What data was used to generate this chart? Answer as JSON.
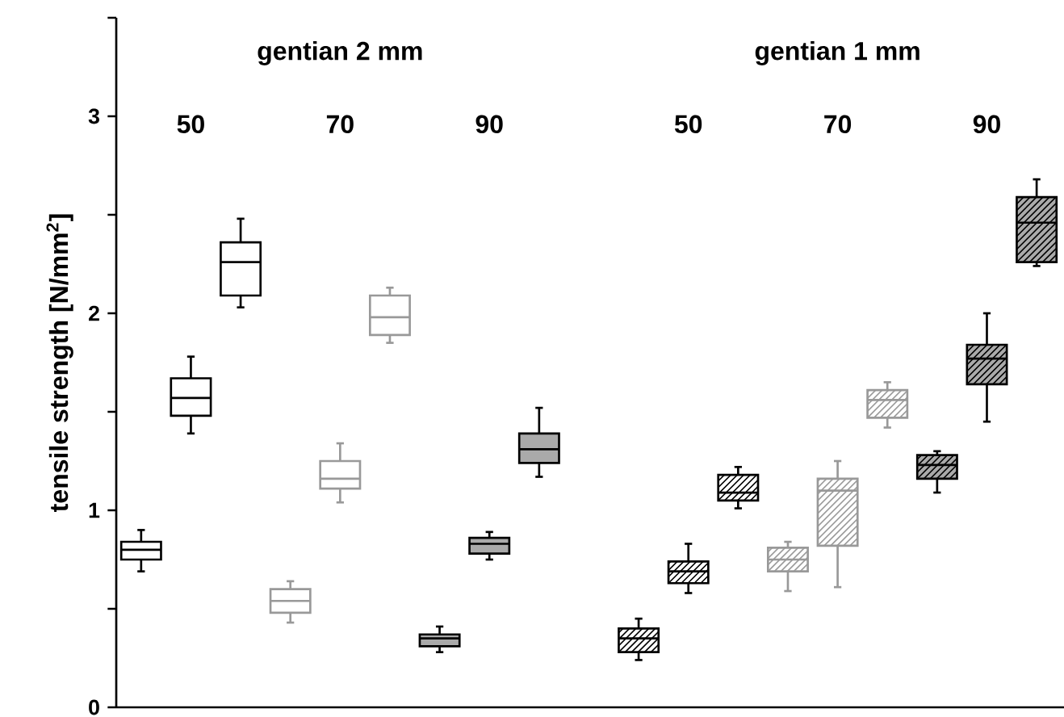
{
  "chart_data": {
    "type": "box",
    "ylabel": "tensile strength [N/mm$^{2}$]",
    "annotations": [
      "gentian 2 mm",
      "gentian 1 mm",
      "50",
      "70",
      "90",
      "50",
      "70",
      "90"
    ],
    "categories": [
      null,
      null,
      null,
      null,
      null,
      null,
      null,
      null,
      null,
      null,
      null,
      null,
      null,
      null,
      null,
      null,
      null,
      null,
      null
    ],
    "colors": [
      "#000000",
      "#000000",
      "#000000",
      "#999999",
      "#999999",
      "#999999",
      "#000000",
      "#000000",
      "#000000",
      null,
      "#000000",
      "#000000",
      "#000000",
      "#999999",
      "#999999",
      "#999999",
      "#000000",
      "#000000",
      "#000000"
    ],
    "boxes": [
      {
        "low": 0.69,
        "q1": 0.75,
        "median": 0.8,
        "q3": 0.84,
        "high": 0.9
      },
      {
        "low": 1.39,
        "q1": 1.48,
        "median": 1.57,
        "q3": 1.67,
        "high": 1.78
      },
      {
        "low": 2.03,
        "q1": 2.09,
        "median": 2.26,
        "q3": 2.36,
        "high": 2.48
      },
      {
        "low": 0.43,
        "q1": 0.48,
        "median": 0.54,
        "q3": 0.6,
        "high": 0.64
      },
      {
        "low": 1.04,
        "q1": 1.11,
        "median": 1.16,
        "q3": 1.25,
        "high": 1.34
      },
      {
        "low": 1.85,
        "q1": 1.89,
        "median": 1.98,
        "q3": 2.09,
        "high": 2.13
      },
      {
        "low": 0.28,
        "q1": 0.31,
        "median": 0.35,
        "q3": 0.37,
        "high": 0.41
      },
      {
        "low": 0.75,
        "q1": 0.78,
        "median": 0.83,
        "q3": 0.86,
        "high": 0.89
      },
      {
        "low": 1.17,
        "q1": 1.24,
        "median": 1.31,
        "q3": 1.39,
        "high": 1.52
      },
      null,
      {
        "low": 0.24,
        "q1": 0.28,
        "median": 0.35,
        "q3": 0.4,
        "high": 0.45
      },
      {
        "low": 0.58,
        "q1": 0.63,
        "median": 0.69,
        "q3": 0.74,
        "high": 0.83
      },
      {
        "low": 1.01,
        "q1": 1.05,
        "median": 1.09,
        "q3": 1.18,
        "high": 1.22
      },
      {
        "low": 0.59,
        "q1": 0.69,
        "median": 0.75,
        "q3": 0.81,
        "high": 0.84
      },
      {
        "low": 0.61,
        "q1": 0.82,
        "median": 1.1,
        "q3": 1.16,
        "high": 1.25
      },
      {
        "low": 1.42,
        "q1": 1.47,
        "median": 1.56,
        "q3": 1.61,
        "high": 1.65
      },
      {
        "low": 1.09,
        "q1": 1.16,
        "median": 1.23,
        "q3": 1.28,
        "high": 1.3
      },
      {
        "low": 1.45,
        "q1": 1.64,
        "median": 1.77,
        "q3": 1.84,
        "high": 2.0
      },
      {
        "low": 2.24,
        "q1": 2.26,
        "median": 2.46,
        "q3": 2.59,
        "high": 2.68
      }
    ],
    "ylim": [
      0,
      3.5
    ],
    "yticks": [
      0,
      {
        "value": 0.5,
        "label": null
      },
      1,
      {
        "value": 1.5,
        "label": null
      },
      2,
      {
        "value": 2.5,
        "label": null
      },
      3,
      {
        "value": 3.5,
        "label": null
      }
    ],
    "tick_labels": "y",
    "grid": false
  }
}
